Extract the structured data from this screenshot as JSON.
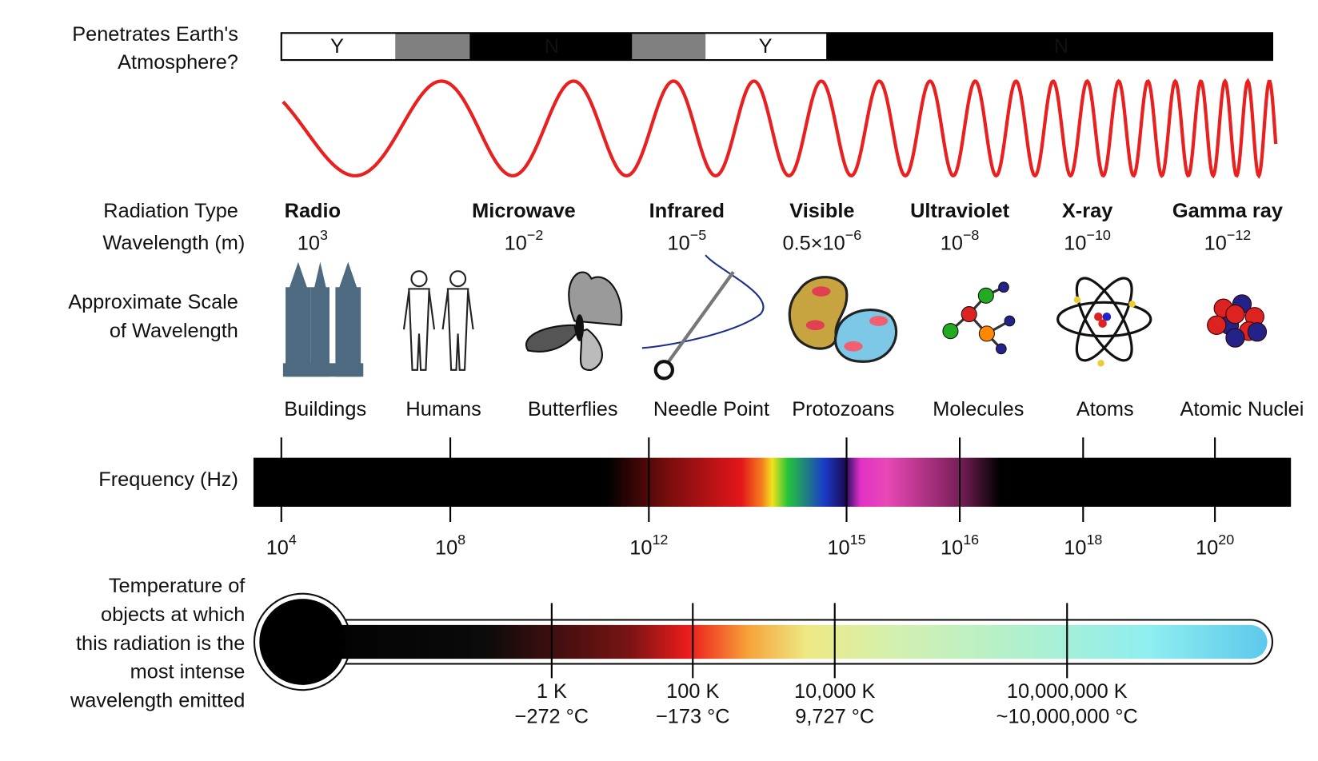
{
  "atmosphere": {
    "label": [
      "Penetrates Earth's",
      "Atmosphere?"
    ],
    "segments": [
      "Y",
      "N",
      "Y",
      "N"
    ]
  },
  "radiation_type_label": "Radiation Type",
  "wavelength_label": "Wavelength (m)",
  "scale_label": [
    "Approximate Scale",
    "of Wavelength"
  ],
  "radiation_types": [
    {
      "name": "Radio",
      "wavelength": {
        "base": "10",
        "exponent": "3"
      }
    },
    {
      "name": "Microwave",
      "wavelength": {
        "base": "10",
        "exponent": "−2"
      }
    },
    {
      "name": "Infrared",
      "wavelength": {
        "base": "10",
        "exponent": "−5"
      }
    },
    {
      "name": "Visible",
      "wavelength": {
        "base": "0.5×10",
        "exponent": "−6"
      }
    },
    {
      "name": "Ultraviolet",
      "wavelength": {
        "base": "10",
        "exponent": "−8"
      }
    },
    {
      "name": "X-ray",
      "wavelength": {
        "base": "10",
        "exponent": "−10"
      }
    },
    {
      "name": "Gamma ray",
      "wavelength": {
        "base": "10",
        "exponent": "−12"
      }
    }
  ],
  "scale_objects": [
    "Buildings",
    "Humans",
    "Butterflies",
    "Needle Point",
    "Protozoans",
    "Molecules",
    "Atoms",
    "Atomic Nuclei"
  ],
  "frequency": {
    "label": "Frequency (Hz)",
    "ticks": [
      {
        "base": "10",
        "exponent": "4"
      },
      {
        "base": "10",
        "exponent": "8"
      },
      {
        "base": "10",
        "exponent": "12"
      },
      {
        "base": "10",
        "exponent": "15"
      },
      {
        "base": "10",
        "exponent": "16"
      },
      {
        "base": "10",
        "exponent": "18"
      },
      {
        "base": "10",
        "exponent": "20"
      }
    ]
  },
  "temperature": {
    "label": [
      "Temperature of",
      "objects at which",
      "this radiation is the",
      "most intense",
      "wavelength emitted"
    ],
    "ticks": [
      {
        "kelvin": "1 K",
        "celsius": "−272 °C"
      },
      {
        "kelvin": "100 K",
        "celsius": "−173 °C"
      },
      {
        "kelvin": "10,000 K",
        "celsius": "9,727 °C"
      },
      {
        "kelvin": "10,000,000 K",
        "celsius": "~10,000,000 °C"
      }
    ]
  }
}
